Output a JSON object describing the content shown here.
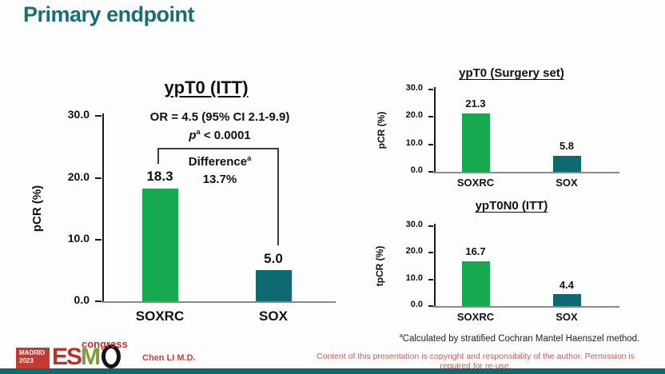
{
  "slide": {
    "title": "Primary endpoint",
    "footer": {
      "footnote_sup": "a",
      "footnote": "Calculated by stratified Cochran Mantel Haenszel method.",
      "author": "Chen LI M.D.",
      "copyright": "Content of this presentation is copyright and responsibility of the author. Permission is required for re-use."
    },
    "logo": {
      "city": "MADRID",
      "year": "2023",
      "letters": [
        "E",
        "S",
        "M",
        "O"
      ],
      "suffix": "congress"
    }
  },
  "colors": {
    "title": "#176F75",
    "bar_soxrc": "#16A94F",
    "bar_sox": "#0E6A71",
    "accent_red": "#C0443D",
    "copyright_red": "#C2605C",
    "strip_teal": "#0E6A71",
    "logo_red": "#B5342C",
    "logo_green": "#7F9C3A"
  },
  "chart_data": [
    {
      "type": "bar",
      "title": "ypT0 (ITT)",
      "ylabel": "pCR (%)",
      "xlabel": "",
      "categories": [
        "SOXRC",
        "SOX"
      ],
      "values": [
        18.3,
        5.0
      ],
      "value_labels": [
        "18.3",
        "5.0"
      ],
      "ylim": [
        0,
        30
      ],
      "yticks": [
        "0.0",
        "10.0",
        "20.0",
        "30.0"
      ],
      "grid": false,
      "legend": false,
      "annotations": {
        "or": "OR = 4.5 (95% CI 2.1-9.9)",
        "p_var": "p",
        "p_sup": "a",
        "p_rest": " < 0.0001",
        "diff_label": "Difference",
        "diff_sup": "a",
        "diff_value": "13.7%"
      }
    },
    {
      "type": "bar",
      "title": "ypT0 (Surgery set)",
      "ylabel": "pCR (%)",
      "xlabel": "",
      "categories": [
        "SOXRC",
        "SOX"
      ],
      "values": [
        21.3,
        5.8
      ],
      "value_labels": [
        "21.3",
        "5.8"
      ],
      "ylim": [
        0,
        30
      ],
      "yticks": [
        "0.0",
        "10.0",
        "20.0",
        "30.0"
      ],
      "grid": false,
      "legend": false
    },
    {
      "type": "bar",
      "title": "ypT0N0 (ITT)",
      "ylabel": "tpCR (%)",
      "xlabel": "",
      "categories": [
        "SOXRC",
        "SOX"
      ],
      "values": [
        16.7,
        4.4
      ],
      "value_labels": [
        "16.7",
        "4.4"
      ],
      "ylim": [
        0,
        30
      ],
      "yticks": [
        "0.0",
        "10.0",
        "20.0",
        "30.0"
      ],
      "grid": false,
      "legend": false
    }
  ]
}
